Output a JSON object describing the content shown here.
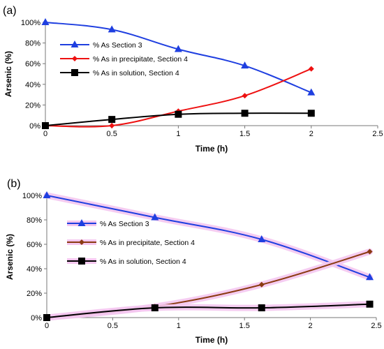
{
  "chart_data": [
    {
      "type": "line",
      "panel_label": "(a)",
      "xlabel": "Time (h)",
      "ylabel": "Arsenic (%)",
      "xlim": [
        0,
        2.5
      ],
      "ylim": [
        0,
        100
      ],
      "x_ticks": [
        "0",
        "0.5",
        "1",
        "1.5",
        "2",
        "2.5"
      ],
      "y_ticks": [
        "0%",
        "20%",
        "40%",
        "60%",
        "80%",
        "100%"
      ],
      "grid": false,
      "legend_position": "left",
      "series": [
        {
          "name": "% As Section 3",
          "color": "#1f3fe0",
          "marker": "triangle",
          "x": [
            0,
            0.5,
            1,
            1.5,
            2
          ],
          "y": [
            100,
            93,
            74,
            58,
            32
          ]
        },
        {
          "name": "% As in precipitate, Section 4",
          "color": "#ee1111",
          "marker": "diamond",
          "x": [
            0,
            0.5,
            1,
            1.5,
            2
          ],
          "y": [
            0,
            0,
            14,
            29,
            55
          ]
        },
        {
          "name": "% As in solution, Section 4",
          "color": "#000000",
          "marker": "square",
          "x": [
            0,
            0.5,
            1,
            1.5,
            2
          ],
          "y": [
            0,
            6,
            11,
            12,
            12
          ]
        }
      ]
    },
    {
      "type": "line",
      "panel_label": "(b)",
      "xlabel": "Time (h)",
      "ylabel": "Arsenic (%)",
      "xlim": [
        0,
        2.5
      ],
      "ylim": [
        0,
        100
      ],
      "x_ticks": [
        "0",
        "0.5",
        "1",
        "1.5",
        "2",
        "2.5"
      ],
      "y_ticks": [
        "0%",
        "20%",
        "40%",
        "60%",
        "80%",
        "100%"
      ],
      "grid": false,
      "legend_position": "left",
      "series": [
        {
          "name": "% As Section 3",
          "color": "#1f3fe0",
          "marker": "triangle",
          "x": [
            0,
            0.82,
            1.63,
            2.45
          ],
          "y": [
            100,
            82,
            64,
            33
          ]
        },
        {
          "name": "% As in precipitate, Section 4",
          "color": "#8b3a12",
          "marker": "diamond",
          "x": [
            0,
            0.82,
            1.63,
            2.45
          ],
          "y": [
            0,
            9,
            27,
            54
          ]
        },
        {
          "name": "% As in solution, Section 4",
          "color": "#000000",
          "marker": "square",
          "x": [
            0,
            0.82,
            1.63,
            2.45
          ],
          "y": [
            0,
            8,
            8,
            11
          ]
        }
      ]
    }
  ]
}
